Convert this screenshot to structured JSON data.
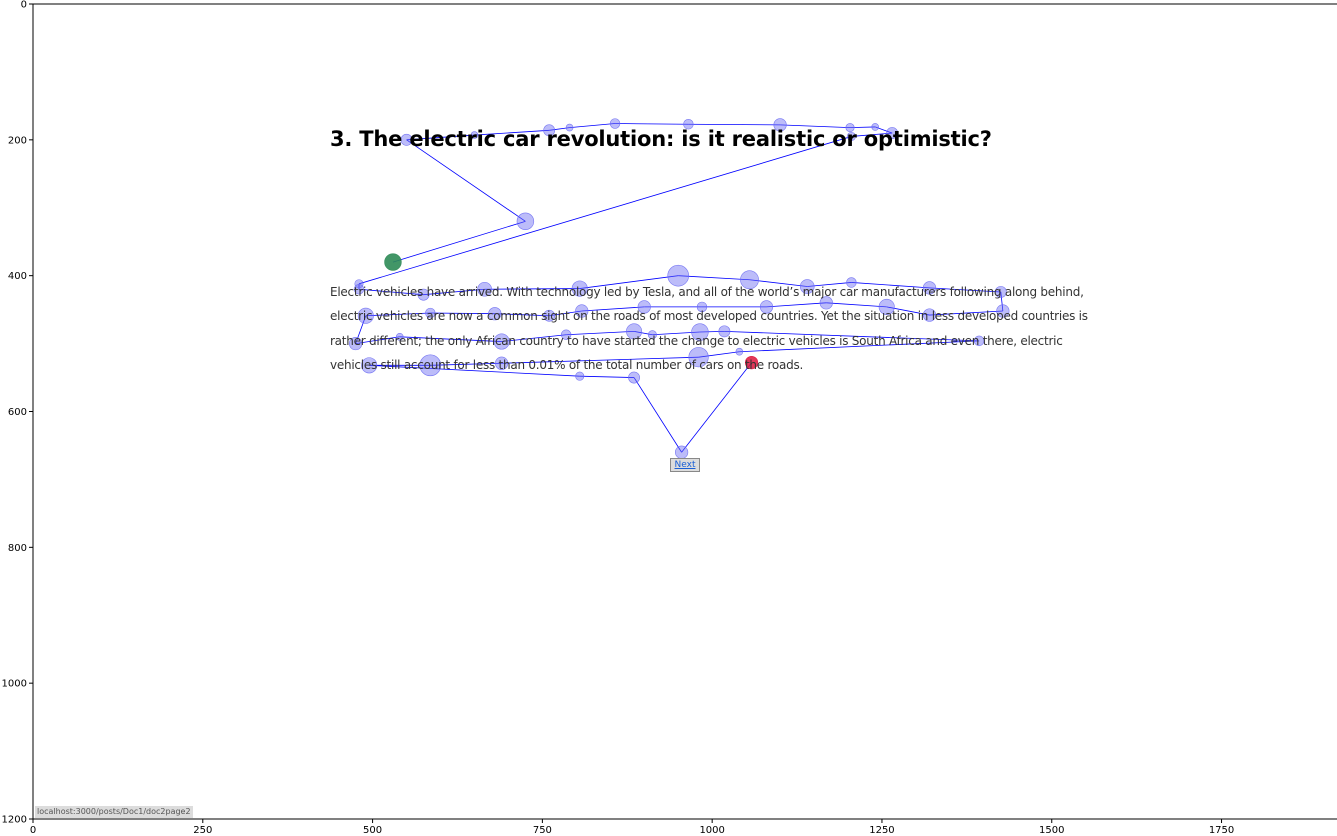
{
  "screenshot": {
    "title": "3. The electric car revolution: is it realistic or optimistic?",
    "paragraph_lines": [
      "Electric vehicles have arrived. With technology led by Tesla, and all of the world’s major car manufacturers following along behind,",
      "electric vehicles are now a common sight on the roads of most developed countries. Yet the situation in less developed countries is",
      "rather different; the only African country to have started the change to electric vehicles is South Africa and even there, electric",
      "vehicles still account for less than 0.01% of the total number of cars on the roads."
    ],
    "next_label": "Next",
    "status_url": "localhost:3000/posts/Doc1/doc2page2"
  },
  "colors": {
    "fixation_fill": "#6b6bf2",
    "scanpath_line": "#0000ff",
    "start_fill": "#2e8b57",
    "end_fill": "#dc143c"
  },
  "chart_data": {
    "type": "scatter",
    "title": "",
    "xlabel": "",
    "ylabel": "",
    "xlim": [
      0,
      1920
    ],
    "ylim": [
      1200,
      0
    ],
    "xticks": [
      0,
      250,
      500,
      750,
      1000,
      1250,
      1500,
      1750
    ],
    "yticks": [
      0,
      200,
      400,
      600,
      800,
      1000,
      1200
    ],
    "grid": false,
    "legend": "none",
    "series": [
      {
        "points": [
          [
            530,
            380,
            12,
            "start"
          ],
          [
            725,
            320,
            12
          ],
          [
            550,
            200,
            8
          ],
          [
            650,
            193,
            5
          ],
          [
            760,
            186,
            8
          ],
          [
            790,
            182,
            5
          ],
          [
            857,
            176,
            7
          ],
          [
            965,
            177,
            7
          ],
          [
            1100,
            178,
            9
          ],
          [
            1203,
            182,
            6
          ],
          [
            1240,
            181,
            5
          ],
          [
            1265,
            190,
            8
          ],
          [
            1205,
            195,
            6
          ],
          [
            480,
            412,
            6
          ],
          [
            480,
            420,
            7
          ],
          [
            575,
            428,
            8
          ],
          [
            665,
            420,
            10
          ],
          [
            805,
            419,
            11
          ],
          [
            950,
            400,
            15
          ],
          [
            1055,
            406,
            13
          ],
          [
            1140,
            416,
            10
          ],
          [
            1205,
            410,
            7
          ],
          [
            1320,
            418,
            9
          ],
          [
            1425,
            424,
            8
          ],
          [
            1428,
            452,
            9
          ],
          [
            1320,
            458,
            9
          ],
          [
            1257,
            446,
            11
          ],
          [
            1168,
            440,
            9
          ],
          [
            1080,
            446,
            9
          ],
          [
            985,
            446,
            7
          ],
          [
            900,
            446,
            9
          ],
          [
            808,
            452,
            9
          ],
          [
            760,
            459,
            8
          ],
          [
            680,
            456,
            9
          ],
          [
            585,
            455,
            7
          ],
          [
            490,
            459,
            11
          ],
          [
            475,
            500,
            9
          ],
          [
            540,
            490,
            5
          ],
          [
            690,
            497,
            11
          ],
          [
            785,
            487,
            7
          ],
          [
            885,
            482,
            11
          ],
          [
            912,
            487,
            6
          ],
          [
            982,
            483,
            12
          ],
          [
            1018,
            482,
            8
          ],
          [
            1393,
            496,
            7
          ],
          [
            1040,
            512,
            5
          ],
          [
            980,
            520,
            14
          ],
          [
            690,
            529,
            9
          ],
          [
            585,
            532,
            15
          ],
          [
            495,
            532,
            11
          ],
          [
            805,
            548,
            6
          ],
          [
            885,
            550,
            8
          ],
          [
            955,
            660,
            9
          ],
          [
            1058,
            528,
            9,
            "end"
          ]
        ]
      }
    ]
  }
}
